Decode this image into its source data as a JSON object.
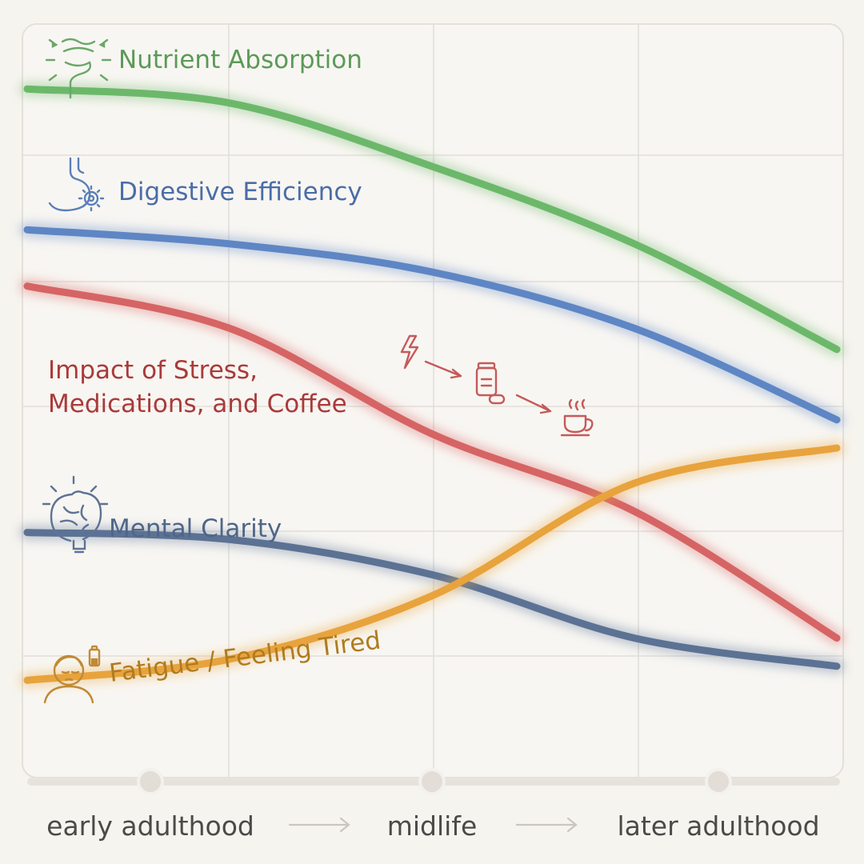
{
  "chart_data": {
    "type": "line",
    "title": "",
    "xlabel": "",
    "ylabel": "",
    "x": [
      0,
      0.25,
      0.5,
      0.75,
      1
    ],
    "x_range": [
      0,
      1
    ],
    "ylim": [
      0,
      100
    ],
    "grid": true,
    "legend": "inline labels at left",
    "tick_labels": [
      "early adulthood",
      "midlife",
      "later adulthood"
    ],
    "series": [
      {
        "name": "Nutrient Absorption",
        "color": "#6cb86a",
        "icon": "intestine-icon",
        "values": [
          96,
          94,
          85,
          74,
          59
        ]
      },
      {
        "name": "Digestive Efficiency",
        "color": "#5e86c4",
        "icon": "stomach-gear-icon",
        "values": [
          76,
          74,
          70,
          62,
          49
        ]
      },
      {
        "name": "Impact of Stress,|Medications, and Coffee",
        "color": "#d66464",
        "icon": "stress-pill-coffee-icons",
        "values": [
          68,
          62,
          47,
          36,
          18
        ]
      },
      {
        "name": "Mental Clarity",
        "color": "#5c7294",
        "icon": "brain-bulb-icon",
        "values": [
          33,
          32,
          27,
          18,
          14
        ]
      },
      {
        "name": "Fatigue / Feeling Tired",
        "color": "#e8a33d",
        "icon": "tired-person-battery-icon",
        "values": [
          12,
          15,
          24,
          40,
          45
        ]
      }
    ]
  }
}
